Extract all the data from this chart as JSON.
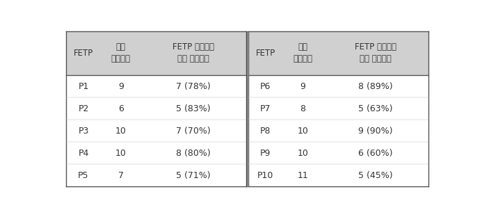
{
  "header_bg": "#d0d0d0",
  "body_bg": "#ffffff",
  "border_color": "#555555",
  "text_color": "#333333",
  "header_font_size": 8.5,
  "body_font_size": 9,
  "left_headers": [
    "FETP",
    "주요\n유행건수",
    "FETP 훈련생의\n참여 유행건수"
  ],
  "right_headers": [
    "FETP",
    "주요\n유행건수",
    "FETP 훈련생의\n참여 유행건수"
  ],
  "left_rows": [
    [
      "P1",
      "9",
      "7 (78%)"
    ],
    [
      "P2",
      "6",
      "5 (83%)"
    ],
    [
      "P3",
      "10",
      "7 (70%)"
    ],
    [
      "P4",
      "10",
      "8 (80%)"
    ],
    [
      "P5",
      "7",
      "5 (71%)"
    ]
  ],
  "right_rows": [
    [
      "P6",
      "9",
      "8 (89%)"
    ],
    [
      "P7",
      "8",
      "5 (63%)"
    ],
    [
      "P8",
      "10",
      "9 (90%)"
    ],
    [
      "P9",
      "10",
      "6 (60%)"
    ],
    [
      "P10",
      "11",
      "5 (45%)"
    ]
  ],
  "fig_width": 6.93,
  "fig_height": 3.12,
  "dpi": 100
}
